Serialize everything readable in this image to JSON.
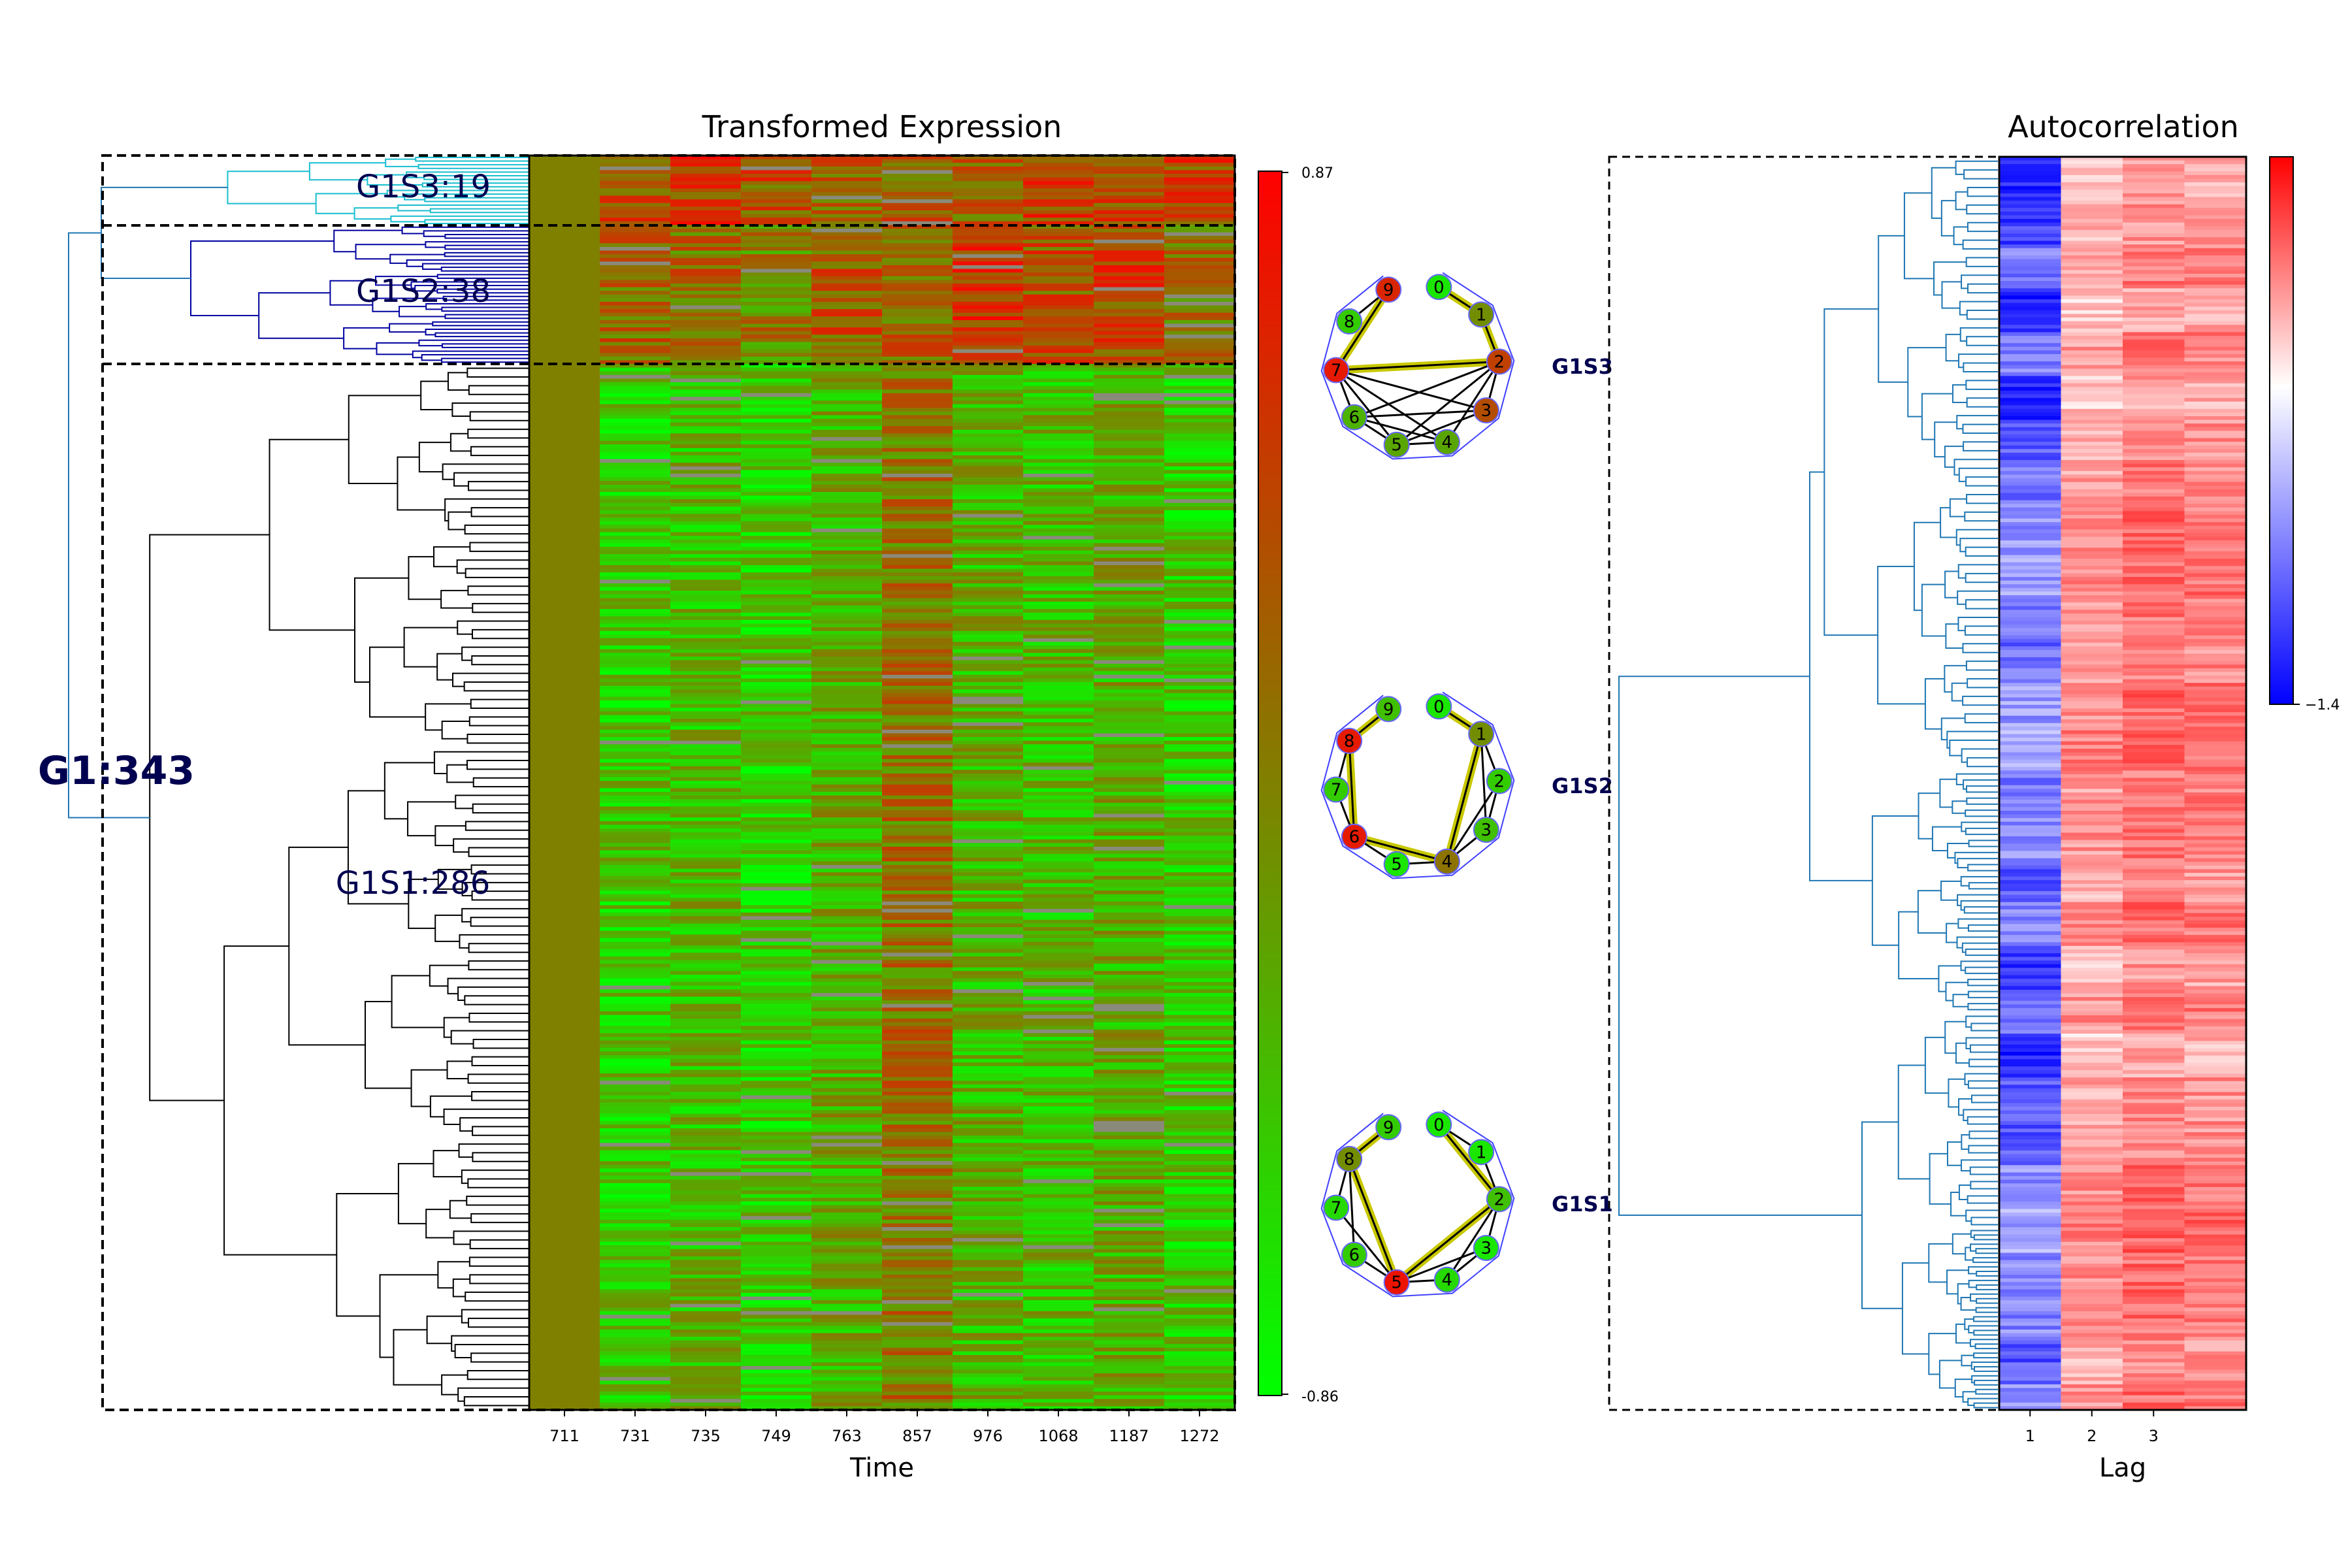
{
  "figure": {
    "heatmap_title": "Transformed Expression",
    "autocorr_title": "Autocorrelation",
    "time_axis_label": "Time",
    "lag_axis_label": "Lag"
  },
  "clusters": {
    "top_level": "G1:343",
    "sub": [
      {
        "id": "G1S3",
        "label": "G1S3:19",
        "count": 19
      },
      {
        "id": "G1S2",
        "label": "G1S2:38",
        "count": 38
      },
      {
        "id": "G1S1",
        "label": "G1S1:286",
        "count": 286
      }
    ]
  },
  "colors": {
    "low": "#00ff00",
    "mid": "#808000",
    "high": "#ff0000",
    "autocorr_low": "#0000ff",
    "autocorr_mid": "#ffffff",
    "autocorr_high": "#ff0000",
    "dendro_g1s3": "#17becf",
    "dendro_g1s2": "#0000a0",
    "dendro_g1s1": "#000000",
    "dendro_top": "#1f77b4",
    "dendro_autocorr": "#1f77b4",
    "network_ring": "#4040ff",
    "network_highlight": "#c8c800",
    "label_navy": "#000050"
  },
  "networks": [
    {
      "label": "G1S3",
      "node_labels": [
        "0",
        "1",
        "2",
        "3",
        "4",
        "5",
        "6",
        "7",
        "8",
        "9"
      ],
      "node_values": [
        -0.8,
        -0.1,
        0.5,
        0.4,
        -0.3,
        -0.3,
        -0.4,
        0.8,
        -0.6,
        0.7
      ],
      "edges": [
        [
          9,
          7
        ],
        [
          9,
          8
        ],
        [
          7,
          2
        ],
        [
          0,
          1
        ],
        [
          1,
          2
        ],
        [
          2,
          3
        ],
        [
          7,
          6
        ],
        [
          7,
          5
        ],
        [
          7,
          4
        ],
        [
          7,
          3
        ],
        [
          6,
          5
        ],
        [
          6,
          2
        ],
        [
          6,
          3
        ],
        [
          5,
          2
        ],
        [
          5,
          4
        ],
        [
          5,
          3
        ],
        [
          4,
          2
        ],
        [
          6,
          4
        ]
      ],
      "highlight_edges": [
        [
          9,
          7
        ],
        [
          7,
          2
        ],
        [
          0,
          1
        ],
        [
          1,
          2
        ]
      ]
    },
    {
      "label": "G1S2",
      "node_labels": [
        "0",
        "1",
        "2",
        "3",
        "4",
        "5",
        "6",
        "7",
        "8",
        "9"
      ],
      "node_values": [
        -0.8,
        -0.1,
        -0.6,
        -0.5,
        0.1,
        -0.8,
        0.8,
        -0.6,
        0.8,
        -0.5
      ],
      "edges": [
        [
          9,
          8
        ],
        [
          8,
          6
        ],
        [
          8,
          7
        ],
        [
          7,
          6
        ],
        [
          6,
          5
        ],
        [
          6,
          4
        ],
        [
          5,
          4
        ],
        [
          4,
          3
        ],
        [
          4,
          2
        ],
        [
          4,
          1
        ],
        [
          3,
          2
        ],
        [
          2,
          1
        ],
        [
          1,
          0
        ],
        [
          3,
          1
        ]
      ],
      "highlight_edges": [
        [
          9,
          8
        ],
        [
          8,
          6
        ],
        [
          6,
          4
        ],
        [
          4,
          1
        ],
        [
          1,
          0
        ]
      ]
    },
    {
      "label": "G1S1",
      "node_labels": [
        "0",
        "1",
        "2",
        "3",
        "4",
        "5",
        "6",
        "7",
        "8",
        "9"
      ],
      "node_values": [
        -0.8,
        -0.8,
        -0.5,
        -0.8,
        -0.7,
        0.85,
        -0.6,
        -0.7,
        -0.1,
        -0.6
      ],
      "edges": [
        [
          9,
          8
        ],
        [
          8,
          7
        ],
        [
          8,
          6
        ],
        [
          8,
          5
        ],
        [
          7,
          5
        ],
        [
          6,
          5
        ],
        [
          5,
          4
        ],
        [
          5,
          3
        ],
        [
          5,
          2
        ],
        [
          4,
          3
        ],
        [
          4,
          2
        ],
        [
          3,
          2
        ],
        [
          2,
          1
        ],
        [
          1,
          0
        ],
        [
          0,
          2
        ]
      ],
      "highlight_edges": [
        [
          9,
          8
        ],
        [
          8,
          5
        ],
        [
          5,
          2
        ],
        [
          2,
          0
        ]
      ]
    }
  ],
  "chart_data": [
    {
      "type": "heatmap",
      "title": "Transformed Expression",
      "xlabel": "Time",
      "x_ticks": [
        "711",
        "731",
        "735",
        "749",
        "763",
        "857",
        "976",
        "1068",
        "1187",
        "1272"
      ],
      "colorbar": {
        "max_label": "0.87",
        "min_label": "-0.86",
        "range": [
          -0.86,
          0.87
        ]
      },
      "row_groups": [
        {
          "label": "G1S3:19",
          "rows": 19,
          "column_means": [
            0.0,
            0.35,
            0.5,
            0.35,
            0.25,
            0.3,
            0.3,
            0.45,
            0.35,
            0.45
          ]
        },
        {
          "label": "G1S2:38",
          "rows": 38,
          "column_means": [
            0.0,
            0.2,
            0.15,
            0.0,
            0.3,
            0.2,
            0.55,
            0.35,
            0.45,
            0.15
          ]
        },
        {
          "label": "G1S1:286",
          "rows": 286,
          "column_means": [
            0.0,
            -0.55,
            -0.45,
            -0.6,
            -0.35,
            0.1,
            -0.4,
            -0.45,
            -0.35,
            -0.55
          ]
        }
      ]
    },
    {
      "type": "heatmap",
      "title": "Autocorrelation",
      "xlabel": "Lag",
      "x_ticks": [
        "1",
        "2",
        "3"
      ],
      "n_columns": 4,
      "n_rows": 343,
      "colorbar": {
        "min_label": "−1.4",
        "range": [
          -1.4,
          1.0
        ]
      },
      "column_means": [
        -0.6,
        0.35,
        0.5,
        0.45
      ]
    }
  ]
}
